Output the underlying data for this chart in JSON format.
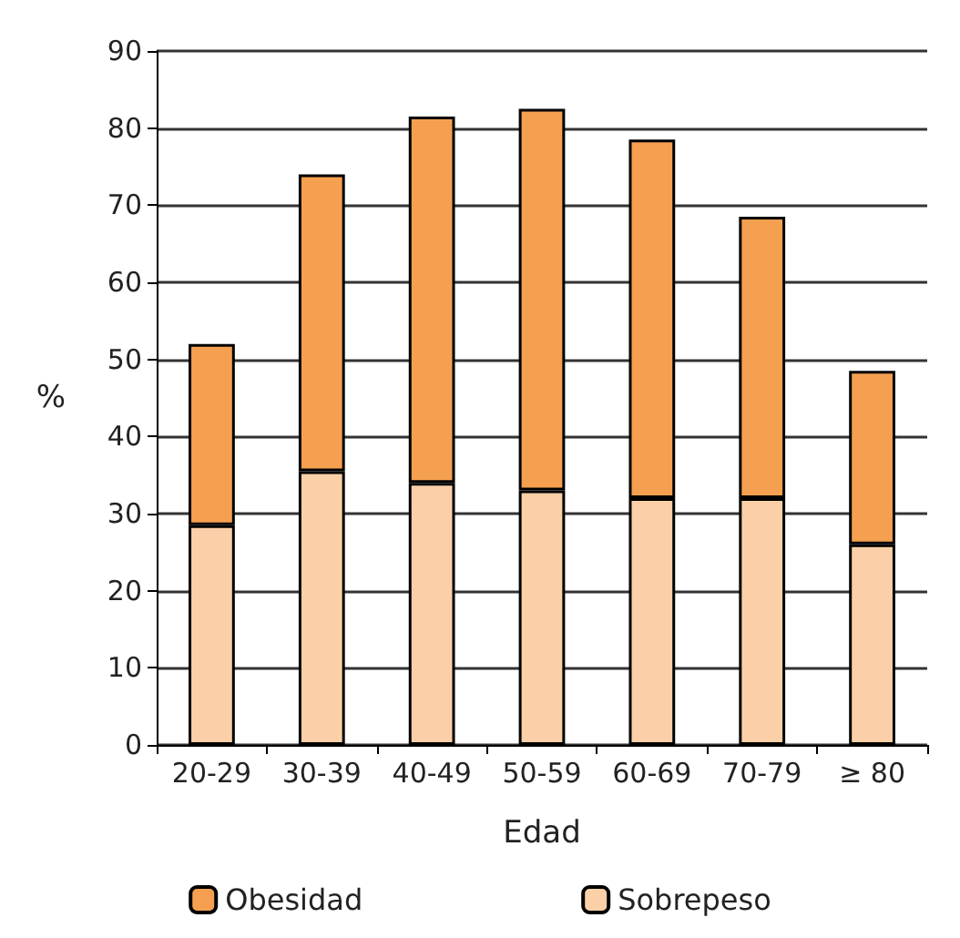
{
  "chart_data": {
    "type": "bar",
    "stacked": true,
    "xlabel": "Edad",
    "ylabel": "%",
    "categories": [
      "20-29",
      "30-39",
      "40-49",
      "50-59",
      "60-69",
      "70-79",
      "≥ 80"
    ],
    "series": [
      {
        "name": "Sobrepeso",
        "color": "#fbd0a8",
        "values": [
          28.5,
          35.5,
          34,
          33,
          32,
          32,
          26
        ]
      },
      {
        "name": "Obesidad",
        "color": "#f4a050",
        "values": [
          23.5,
          38.5,
          47.5,
          49.5,
          46.5,
          36.5,
          22.5
        ]
      }
    ],
    "ylim": [
      0,
      90
    ],
    "yticks": [
      0,
      10,
      20,
      30,
      40,
      50,
      60,
      70,
      80,
      90
    ],
    "grid": "y",
    "legend": "bottom"
  }
}
